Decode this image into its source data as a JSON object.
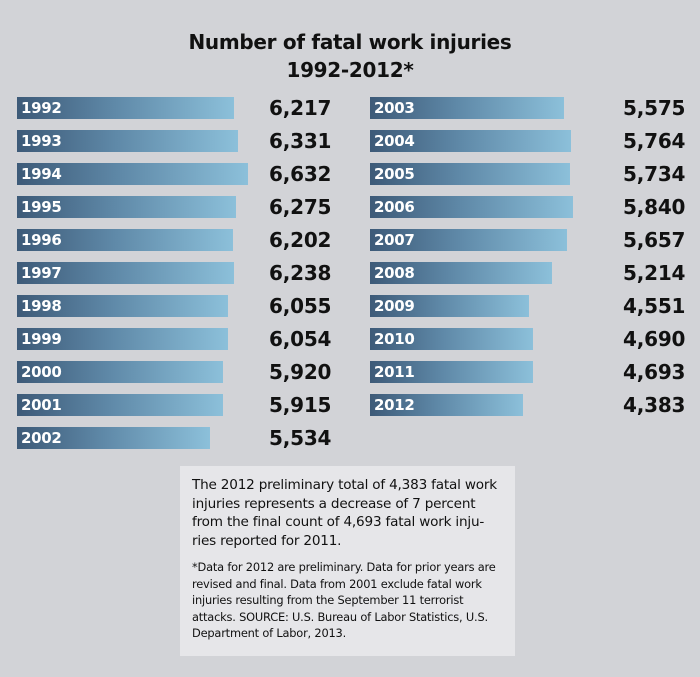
{
  "chart_data": {
    "type": "bar",
    "title": "Number of fatal work injuries",
    "subtitle": "1992-2012*",
    "categories": [
      "1992",
      "1993",
      "1994",
      "1995",
      "1996",
      "1997",
      "1998",
      "1999",
      "2000",
      "2001",
      "2002",
      "2003",
      "2004",
      "2005",
      "2006",
      "2007",
      "2008",
      "2009",
      "2010",
      "2011",
      "2012"
    ],
    "values": [
      6217,
      6331,
      6632,
      6275,
      6202,
      6238,
      6055,
      6054,
      5920,
      5915,
      5534,
      5575,
      5764,
      5734,
      5840,
      5657,
      5214,
      4551,
      4690,
      4693,
      4383
    ],
    "value_labels": [
      "6,217",
      "6,331",
      "6,632",
      "6,275",
      "6,202",
      "6,238",
      "6,055",
      "6,054",
      "5,920",
      "5,915",
      "5,534",
      "5,575",
      "5,764",
      "5,734",
      "5,840",
      "5,657",
      "5,214",
      "4,551",
      "4,690",
      "4,693",
      "4,383"
    ],
    "orientation": "horizontal",
    "layout": "two-column",
    "colors": {
      "bar_dark": "#3d5a78",
      "bar_light": "#8cc0da",
      "background": "#d2d3d7",
      "note_box": "#e6e6e9"
    }
  },
  "note": {
    "summary": "The 2012 preliminary total of 4,383 fatal work injuries represents a decrease of 7 percent from the final count of 4,693 fatal work inju- ries reported for 2011.",
    "footnote": "*Data for 2012 are preliminary. Data for prior years are revised and final. Data from 2001 exclude fatal work injuries resulting from the September 11 terrorist attacks. SOURCE: U.S. Bureau of Labor Statistics, U.S. Department of Labor, 2013."
  }
}
